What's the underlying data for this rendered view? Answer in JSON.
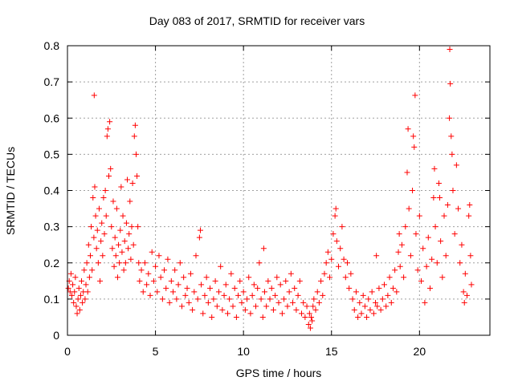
{
  "chart_data": {
    "type": "scatter",
    "title": "Day 083 of 2017, SRMTID for receiver vars",
    "xlabel": "GPS time / hours",
    "ylabel": "SRMTID / TECUs",
    "xlim": [
      0,
      24
    ],
    "ylim": [
      0,
      0.8
    ],
    "xticks": [
      0,
      5,
      10,
      15,
      20
    ],
    "yticks": [
      0,
      0.1,
      0.2,
      0.3,
      0.4,
      0.5,
      0.6,
      0.7,
      0.8
    ],
    "xtick_labels": [
      "0",
      "5",
      "10",
      "15",
      "20"
    ],
    "ytick_labels": [
      "0",
      "0.1",
      "0.2",
      "0.3",
      "0.4",
      "0.5",
      "0.6",
      "0.7",
      "0.8"
    ],
    "grid": true,
    "marker": "+",
    "color": "#ff0000",
    "series": [
      {
        "name": "SRMTID",
        "points": [
          [
            0.05,
            0.13
          ],
          [
            0.1,
            0.15
          ],
          [
            0.15,
            0.12
          ],
          [
            0.2,
            0.17
          ],
          [
            0.25,
            0.11
          ],
          [
            0.3,
            0.14
          ],
          [
            0.35,
            0.09
          ],
          [
            0.4,
            0.12
          ],
          [
            0.45,
            0.16
          ],
          [
            0.5,
            0.08
          ],
          [
            0.55,
            0.06
          ],
          [
            0.6,
            0.1
          ],
          [
            0.65,
            0.13
          ],
          [
            0.7,
            0.07
          ],
          [
            0.75,
            0.11
          ],
          [
            0.8,
            0.15
          ],
          [
            0.85,
            0.09
          ],
          [
            0.9,
            0.12
          ],
          [
            0.95,
            0.18
          ],
          [
            1.0,
            0.1
          ],
          [
            1.05,
            0.14
          ],
          [
            1.1,
            0.2
          ],
          [
            1.15,
            0.12
          ],
          [
            1.2,
            0.25
          ],
          [
            1.25,
            0.16
          ],
          [
            1.3,
            0.22
          ],
          [
            1.35,
            0.3
          ],
          [
            1.4,
            0.18
          ],
          [
            1.45,
            0.38
          ],
          [
            1.5,
            0.27
          ],
          [
            1.52,
            0.663
          ],
          [
            1.55,
            0.41
          ],
          [
            1.6,
            0.33
          ],
          [
            1.65,
            0.24
          ],
          [
            1.7,
            0.29
          ],
          [
            1.75,
            0.2
          ],
          [
            1.8,
            0.35
          ],
          [
            1.85,
            0.15
          ],
          [
            1.9,
            0.26
          ],
          [
            1.95,
            0.31
          ],
          [
            2.0,
            0.22
          ],
          [
            2.05,
            0.38
          ],
          [
            2.1,
            0.28
          ],
          [
            2.15,
            0.4
          ],
          [
            2.2,
            0.33
          ],
          [
            2.25,
            0.55
          ],
          [
            2.3,
            0.57
          ],
          [
            2.35,
            0.44
          ],
          [
            2.4,
            0.59
          ],
          [
            2.45,
            0.46
          ],
          [
            2.5,
            0.3
          ],
          [
            2.55,
            0.24
          ],
          [
            2.6,
            0.37
          ],
          [
            2.65,
            0.19
          ],
          [
            2.7,
            0.27
          ],
          [
            2.75,
            0.22
          ],
          [
            2.8,
            0.35
          ],
          [
            2.85,
            0.16
          ],
          [
            2.9,
            0.25
          ],
          [
            2.95,
            0.2
          ],
          [
            3.0,
            0.29
          ],
          [
            3.05,
            0.41
          ],
          [
            3.1,
            0.23
          ],
          [
            3.15,
            0.33
          ],
          [
            3.2,
            0.18
          ],
          [
            3.25,
            0.26
          ],
          [
            3.3,
            0.2
          ],
          [
            3.35,
            0.31
          ],
          [
            3.4,
            0.43
          ],
          [
            3.45,
            0.24
          ],
          [
            3.5,
            0.28
          ],
          [
            3.55,
            0.37
          ],
          [
            3.6,
            0.21
          ],
          [
            3.65,
            0.3
          ],
          [
            3.7,
            0.42
          ],
          [
            3.75,
            0.25
          ],
          [
            3.8,
            0.55
          ],
          [
            3.85,
            0.58
          ],
          [
            3.9,
            0.5
          ],
          [
            3.95,
            0.44
          ],
          [
            4.0,
            0.3
          ],
          [
            4.05,
            0.2
          ],
          [
            4.1,
            0.15
          ],
          [
            4.2,
            0.18
          ],
          [
            4.3,
            0.12
          ],
          [
            4.4,
            0.2
          ],
          [
            4.5,
            0.14
          ],
          [
            4.6,
            0.17
          ],
          [
            4.7,
            0.11
          ],
          [
            4.8,
            0.23
          ],
          [
            4.9,
            0.15
          ],
          [
            5.0,
            0.19
          ],
          [
            5.1,
            0.12
          ],
          [
            5.2,
            0.22
          ],
          [
            5.3,
            0.16
          ],
          [
            5.4,
            0.1
          ],
          [
            5.5,
            0.18
          ],
          [
            5.6,
            0.13
          ],
          [
            5.7,
            0.21
          ],
          [
            5.8,
            0.09
          ],
          [
            5.9,
            0.15
          ],
          [
            6.0,
            0.12
          ],
          [
            6.1,
            0.18
          ],
          [
            6.2,
            0.1
          ],
          [
            6.3,
            0.14
          ],
          [
            6.4,
            0.2
          ],
          [
            6.5,
            0.08
          ],
          [
            6.6,
            0.16
          ],
          [
            6.7,
            0.11
          ],
          [
            6.8,
            0.13
          ],
          [
            6.9,
            0.09
          ],
          [
            7.0,
            0.17
          ],
          [
            7.1,
            0.07
          ],
          [
            7.2,
            0.12
          ],
          [
            7.3,
            0.22
          ],
          [
            7.4,
            0.1
          ],
          [
            7.5,
            0.27
          ],
          [
            7.55,
            0.29
          ],
          [
            7.6,
            0.14
          ],
          [
            7.7,
            0.06
          ],
          [
            7.8,
            0.11
          ],
          [
            7.9,
            0.16
          ],
          [
            8.0,
            0.09
          ],
          [
            8.1,
            0.13
          ],
          [
            8.2,
            0.05
          ],
          [
            8.3,
            0.1
          ],
          [
            8.4,
            0.15
          ],
          [
            8.5,
            0.08
          ],
          [
            8.6,
            0.12
          ],
          [
            8.7,
            0.19
          ],
          [
            8.8,
            0.07
          ],
          [
            8.9,
            0.11
          ],
          [
            9.0,
            0.14
          ],
          [
            9.1,
            0.06
          ],
          [
            9.2,
            0.1
          ],
          [
            9.3,
            0.17
          ],
          [
            9.4,
            0.08
          ],
          [
            9.5,
            0.13
          ],
          [
            9.6,
            0.05
          ],
          [
            9.7,
            0.11
          ],
          [
            9.8,
            0.15
          ],
          [
            9.9,
            0.09
          ],
          [
            10.0,
            0.12
          ],
          [
            10.1,
            0.07
          ],
          [
            10.2,
            0.1
          ],
          [
            10.3,
            0.16
          ],
          [
            10.4,
            0.06
          ],
          [
            10.5,
            0.11
          ],
          [
            10.6,
            0.14
          ],
          [
            10.7,
            0.08
          ],
          [
            10.8,
            0.13
          ],
          [
            10.9,
            0.2
          ],
          [
            11.0,
            0.1
          ],
          [
            11.1,
            0.05
          ],
          [
            11.15,
            0.24
          ],
          [
            11.2,
            0.12
          ],
          [
            11.3,
            0.08
          ],
          [
            11.4,
            0.15
          ],
          [
            11.5,
            0.1
          ],
          [
            11.6,
            0.13
          ],
          [
            11.7,
            0.07
          ],
          [
            11.8,
            0.11
          ],
          [
            11.9,
            0.16
          ],
          [
            12.0,
            0.09
          ],
          [
            12.1,
            0.14
          ],
          [
            12.2,
            0.06
          ],
          [
            12.3,
            0.1
          ],
          [
            12.4,
            0.15
          ],
          [
            12.5,
            0.08
          ],
          [
            12.6,
            0.12
          ],
          [
            12.7,
            0.17
          ],
          [
            12.8,
            0.09
          ],
          [
            12.9,
            0.13
          ],
          [
            13.0,
            0.07
          ],
          [
            13.1,
            0.11
          ],
          [
            13.2,
            0.15
          ],
          [
            13.3,
            0.06
          ],
          [
            13.4,
            0.09
          ],
          [
            13.5,
            0.05
          ],
          [
            13.6,
            0.08
          ],
          [
            13.7,
            0.03
          ],
          [
            13.75,
            0.06
          ],
          [
            13.8,
            0.02
          ],
          [
            13.85,
            0.05
          ],
          [
            13.9,
            0.04
          ],
          [
            13.95,
            0.08
          ],
          [
            14.0,
            0.1
          ],
          [
            14.1,
            0.07
          ],
          [
            14.2,
            0.12
          ],
          [
            14.3,
            0.09
          ],
          [
            14.4,
            0.15
          ],
          [
            14.5,
            0.11
          ],
          [
            14.6,
            0.17
          ],
          [
            14.7,
            0.2
          ],
          [
            14.8,
            0.23
          ],
          [
            14.9,
            0.16
          ],
          [
            15.0,
            0.21
          ],
          [
            15.1,
            0.28
          ],
          [
            15.2,
            0.33
          ],
          [
            15.25,
            0.35
          ],
          [
            15.3,
            0.26
          ],
          [
            15.4,
            0.19
          ],
          [
            15.5,
            0.24
          ],
          [
            15.6,
            0.3
          ],
          [
            15.7,
            0.21
          ],
          [
            15.8,
            0.16
          ],
          [
            15.9,
            0.2
          ],
          [
            16.0,
            0.13
          ],
          [
            16.1,
            0.17
          ],
          [
            16.2,
            0.1
          ],
          [
            16.3,
            0.07
          ],
          [
            16.4,
            0.12
          ],
          [
            16.5,
            0.05
          ],
          [
            16.6,
            0.09
          ],
          [
            16.7,
            0.06
          ],
          [
            16.8,
            0.11
          ],
          [
            16.9,
            0.08
          ],
          [
            17.0,
            0.05
          ],
          [
            17.1,
            0.1
          ],
          [
            17.2,
            0.07
          ],
          [
            17.3,
            0.12
          ],
          [
            17.4,
            0.06
          ],
          [
            17.5,
            0.09
          ],
          [
            17.55,
            0.22
          ],
          [
            17.6,
            0.08
          ],
          [
            17.7,
            0.13
          ],
          [
            17.8,
            0.07
          ],
          [
            17.9,
            0.1
          ],
          [
            18.0,
            0.14
          ],
          [
            18.1,
            0.08
          ],
          [
            18.2,
            0.11
          ],
          [
            18.3,
            0.16
          ],
          [
            18.4,
            0.09
          ],
          [
            18.5,
            0.13
          ],
          [
            18.6,
            0.18
          ],
          [
            18.7,
            0.12
          ],
          [
            18.8,
            0.23
          ],
          [
            18.85,
            0.28
          ],
          [
            18.9,
            0.19
          ],
          [
            19.0,
            0.25
          ],
          [
            19.1,
            0.16
          ],
          [
            19.2,
            0.3
          ],
          [
            19.3,
            0.45
          ],
          [
            19.35,
            0.57
          ],
          [
            19.4,
            0.35
          ],
          [
            19.5,
            0.22
          ],
          [
            19.6,
            0.4
          ],
          [
            19.65,
            0.55
          ],
          [
            19.7,
            0.52
          ],
          [
            19.75,
            0.663
          ],
          [
            19.8,
            0.28
          ],
          [
            19.9,
            0.18
          ],
          [
            20.0,
            0.33
          ],
          [
            20.1,
            0.15
          ],
          [
            20.2,
            0.24
          ],
          [
            20.3,
            0.09
          ],
          [
            20.4,
            0.19
          ],
          [
            20.5,
            0.27
          ],
          [
            20.6,
            0.13
          ],
          [
            20.7,
            0.21
          ],
          [
            20.8,
            0.38
          ],
          [
            20.85,
            0.46
          ],
          [
            20.9,
            0.3
          ],
          [
            21.0,
            0.2
          ],
          [
            21.1,
            0.42
          ],
          [
            21.15,
            0.38
          ],
          [
            21.2,
            0.26
          ],
          [
            21.3,
            0.16
          ],
          [
            21.4,
            0.33
          ],
          [
            21.5,
            0.22
          ],
          [
            21.6,
            0.36
          ],
          [
            21.7,
            0.6
          ],
          [
            21.72,
            0.79
          ],
          [
            21.75,
            0.695
          ],
          [
            21.8,
            0.55
          ],
          [
            21.85,
            0.5
          ],
          [
            21.9,
            0.4
          ],
          [
            22.0,
            0.28
          ],
          [
            22.1,
            0.47
          ],
          [
            22.2,
            0.35
          ],
          [
            22.3,
            0.2
          ],
          [
            22.4,
            0.25
          ],
          [
            22.5,
            0.12
          ],
          [
            22.55,
            0.09
          ],
          [
            22.6,
            0.17
          ],
          [
            22.7,
            0.11
          ],
          [
            22.8,
            0.33
          ],
          [
            22.85,
            0.36
          ],
          [
            22.9,
            0.22
          ],
          [
            22.95,
            0.14
          ]
        ]
      }
    ]
  }
}
